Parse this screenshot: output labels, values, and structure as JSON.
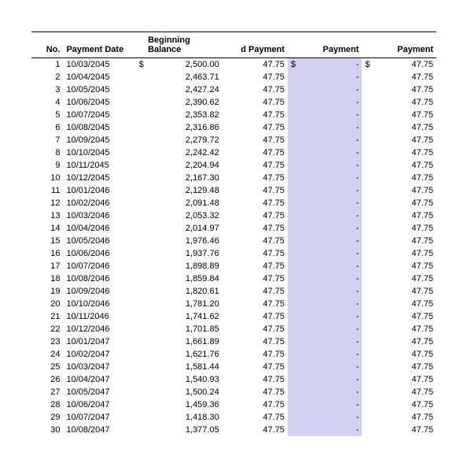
{
  "table": {
    "headers": {
      "no": "No.",
      "payment_date": "Payment Date",
      "beginning_balance": "Beginning Balance",
      "d_payment": "d Payment",
      "payment1": "Payment",
      "payment2": "Payment"
    },
    "currency_symbol": "$",
    "highlight_color": "#d2d2f0",
    "header_border_color": "#000000",
    "font_size": 11,
    "background_color": "#ffffff",
    "rows": [
      {
        "no": 1,
        "date": "10/03/2045",
        "bal": "2,500.00",
        "dpay": "47.75",
        "pay1": "-",
        "pay2": "47.75"
      },
      {
        "no": 2,
        "date": "10/04/2045",
        "bal": "2,463.71",
        "dpay": "47.75",
        "pay1": "-",
        "pay2": "47.75"
      },
      {
        "no": 3,
        "date": "10/05/2045",
        "bal": "2,427.24",
        "dpay": "47.75",
        "pay1": "-",
        "pay2": "47.75"
      },
      {
        "no": 4,
        "date": "10/06/2045",
        "bal": "2,390.62",
        "dpay": "47.75",
        "pay1": "-",
        "pay2": "47.75"
      },
      {
        "no": 5,
        "date": "10/07/2045",
        "bal": "2,353.82",
        "dpay": "47.75",
        "pay1": "-",
        "pay2": "47.75"
      },
      {
        "no": 6,
        "date": "10/08/2045",
        "bal": "2,316.86",
        "dpay": "47.75",
        "pay1": "-",
        "pay2": "47.75"
      },
      {
        "no": 7,
        "date": "10/09/2045",
        "bal": "2,279.72",
        "dpay": "47.75",
        "pay1": "-",
        "pay2": "47.75"
      },
      {
        "no": 8,
        "date": "10/10/2045",
        "bal": "2,242.42",
        "dpay": "47.75",
        "pay1": "-",
        "pay2": "47.75"
      },
      {
        "no": 9,
        "date": "10/11/2045",
        "bal": "2,204.94",
        "dpay": "47.75",
        "pay1": "-",
        "pay2": "47.75"
      },
      {
        "no": 10,
        "date": "10/12/2045",
        "bal": "2,167.30",
        "dpay": "47.75",
        "pay1": "-",
        "pay2": "47.75"
      },
      {
        "no": 11,
        "date": "10/01/2046",
        "bal": "2,129.48",
        "dpay": "47.75",
        "pay1": "-",
        "pay2": "47.75"
      },
      {
        "no": 12,
        "date": "10/02/2046",
        "bal": "2,091.48",
        "dpay": "47.75",
        "pay1": "-",
        "pay2": "47.75"
      },
      {
        "no": 13,
        "date": "10/03/2046",
        "bal": "2,053.32",
        "dpay": "47.75",
        "pay1": "-",
        "pay2": "47.75"
      },
      {
        "no": 14,
        "date": "10/04/2046",
        "bal": "2,014.97",
        "dpay": "47.75",
        "pay1": "-",
        "pay2": "47.75"
      },
      {
        "no": 15,
        "date": "10/05/2046",
        "bal": "1,976.46",
        "dpay": "47.75",
        "pay1": "-",
        "pay2": "47.75"
      },
      {
        "no": 16,
        "date": "10/06/2046",
        "bal": "1,937.76",
        "dpay": "47.75",
        "pay1": "-",
        "pay2": "47.75"
      },
      {
        "no": 17,
        "date": "10/07/2046",
        "bal": "1,898.89",
        "dpay": "47.75",
        "pay1": "-",
        "pay2": "47.75"
      },
      {
        "no": 18,
        "date": "10/08/2046",
        "bal": "1,859.84",
        "dpay": "47.75",
        "pay1": "-",
        "pay2": "47.75"
      },
      {
        "no": 19,
        "date": "10/09/2046",
        "bal": "1,820.61",
        "dpay": "47.75",
        "pay1": "-",
        "pay2": "47.75"
      },
      {
        "no": 20,
        "date": "10/10/2046",
        "bal": "1,781.20",
        "dpay": "47.75",
        "pay1": "-",
        "pay2": "47.75"
      },
      {
        "no": 21,
        "date": "10/11/2046",
        "bal": "1,741.62",
        "dpay": "47.75",
        "pay1": "-",
        "pay2": "47.75"
      },
      {
        "no": 22,
        "date": "10/12/2046",
        "bal": "1,701.85",
        "dpay": "47.75",
        "pay1": "-",
        "pay2": "47.75"
      },
      {
        "no": 23,
        "date": "10/01/2047",
        "bal": "1,661.89",
        "dpay": "47.75",
        "pay1": "-",
        "pay2": "47.75"
      },
      {
        "no": 24,
        "date": "10/02/2047",
        "bal": "1,621.76",
        "dpay": "47.75",
        "pay1": "-",
        "pay2": "47.75"
      },
      {
        "no": 25,
        "date": "10/03/2047",
        "bal": "1,581.44",
        "dpay": "47.75",
        "pay1": "-",
        "pay2": "47.75"
      },
      {
        "no": 26,
        "date": "10/04/2047",
        "bal": "1,540.93",
        "dpay": "47.75",
        "pay1": "-",
        "pay2": "47.75"
      },
      {
        "no": 27,
        "date": "10/05/2047",
        "bal": "1,500.24",
        "dpay": "47.75",
        "pay1": "-",
        "pay2": "47.75"
      },
      {
        "no": 28,
        "date": "10/06/2047",
        "bal": "1,459.36",
        "dpay": "47.75",
        "pay1": "-",
        "pay2": "47.75"
      },
      {
        "no": 29,
        "date": "10/07/2047",
        "bal": "1,418.30",
        "dpay": "47.75",
        "pay1": "-",
        "pay2": "47.75"
      },
      {
        "no": 30,
        "date": "10/08/2047",
        "bal": "1,377.05",
        "dpay": "47.75",
        "pay1": "-",
        "pay2": "47.75"
      }
    ]
  }
}
